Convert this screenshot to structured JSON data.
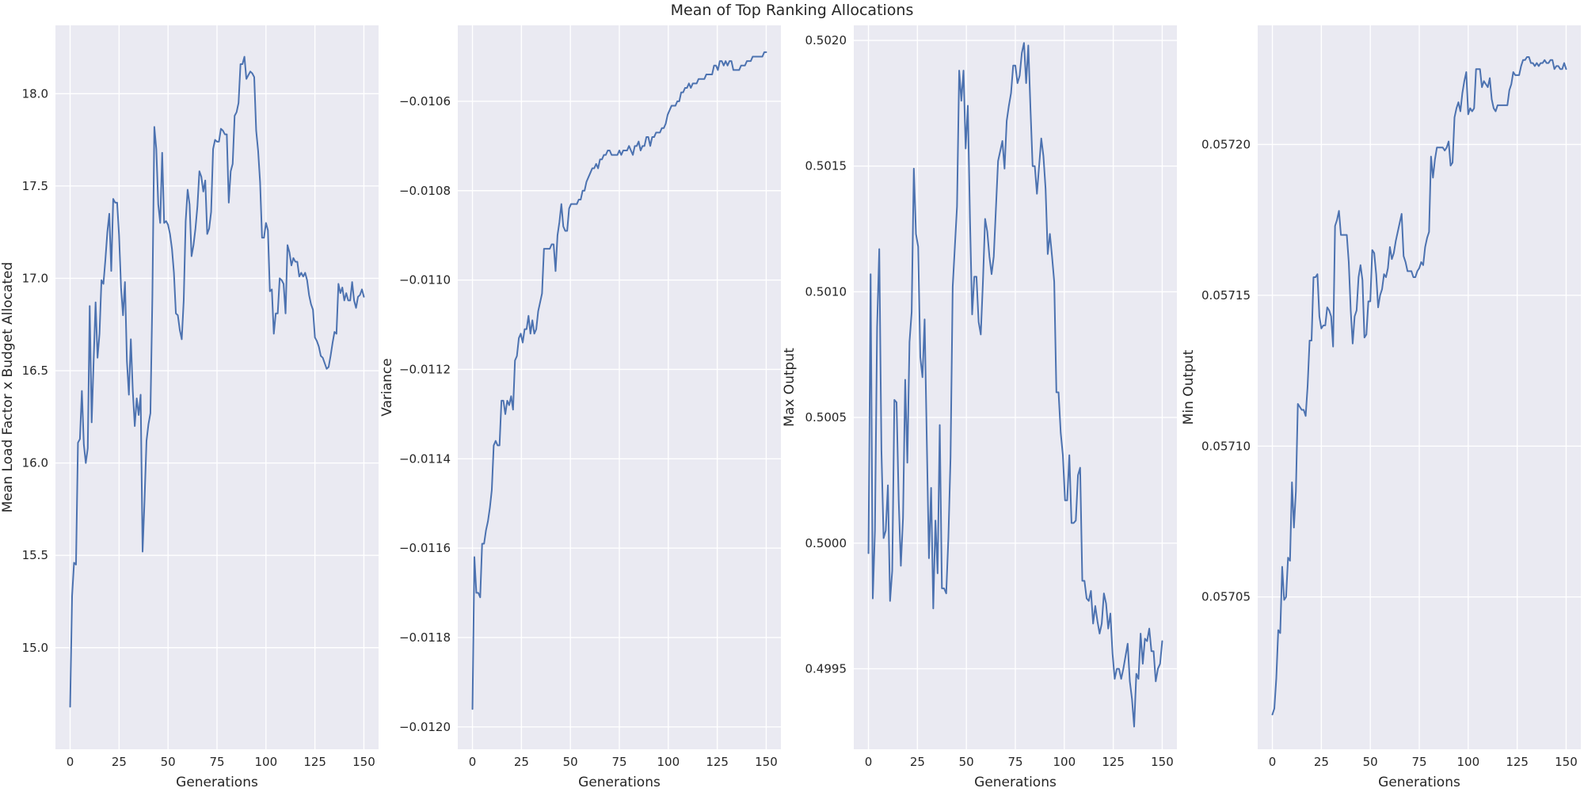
{
  "figure": {
    "title": "Mean of Top Ranking Allocations"
  },
  "style": {
    "panel_bg": "#EAEAF2",
    "grid": "#FFFFFF",
    "line": "#4C72B0",
    "text": "#262626"
  },
  "chart_data": [
    {
      "type": "line",
      "xlabel": "Generations",
      "ylabel": "Mean Load Factor x Budget Allocated",
      "xlim": [
        -7.5,
        157.5
      ],
      "ylim": [
        14.45,
        18.37
      ],
      "xticks": [
        0,
        25,
        50,
        75,
        100,
        125,
        150
      ],
      "yticks": [
        15.0,
        15.5,
        16.0,
        16.5,
        17.0,
        17.5,
        18.0
      ],
      "ytick_labels": [
        "15.0",
        "15.5",
        "16.0",
        "16.5",
        "17.0",
        "17.5",
        "18.0"
      ],
      "grid": true,
      "x_range": [
        0,
        150
      ],
      "series": [
        {
          "y": [
            14.68,
            15.28,
            15.46,
            15.45,
            16.11,
            16.13,
            16.39,
            16.1,
            16.0,
            16.08,
            16.85,
            16.22,
            16.55,
            16.87,
            16.57,
            16.7,
            16.99,
            16.97,
            17.1,
            17.25,
            17.35,
            17.04,
            17.43,
            17.41,
            17.41,
            17.23,
            16.95,
            16.8,
            16.98,
            16.55,
            16.37,
            16.67,
            16.39,
            16.2,
            16.35,
            16.26,
            16.37,
            15.52,
            15.8,
            16.12,
            16.21,
            16.27,
            16.9,
            17.82,
            17.7,
            17.4,
            17.3,
            17.68,
            17.3,
            17.31,
            17.29,
            17.24,
            17.16,
            17.03,
            16.81,
            16.8,
            16.72,
            16.67,
            16.88,
            17.31,
            17.48,
            17.4,
            17.12,
            17.18,
            17.27,
            17.39,
            17.58,
            17.55,
            17.47,
            17.53,
            17.24,
            17.27,
            17.36,
            17.7,
            17.75,
            17.74,
            17.74,
            17.81,
            17.8,
            17.78,
            17.78,
            17.41,
            17.58,
            17.62,
            17.88,
            17.9,
            17.95,
            18.16,
            18.16,
            18.2,
            18.08,
            18.1,
            18.12,
            18.11,
            18.09,
            17.8,
            17.69,
            17.52,
            17.22,
            17.22,
            17.3,
            17.26,
            16.93,
            16.94,
            16.7,
            16.81,
            16.81,
            17.0,
            16.99,
            16.97,
            16.81,
            17.18,
            17.14,
            17.07,
            17.11,
            17.09,
            17.09,
            17.01,
            17.03,
            17.01,
            17.03,
            16.99,
            16.91,
            16.86,
            16.83,
            16.68,
            16.66,
            16.63,
            16.58,
            16.57,
            16.54,
            16.51,
            16.52,
            16.58,
            16.65,
            16.71,
            16.7,
            16.97,
            16.92,
            16.95,
            16.88,
            16.92,
            16.88,
            16.88,
            16.98,
            16.88,
            16.84,
            16.9,
            16.91,
            16.94,
            16.9
          ]
        }
      ]
    },
    {
      "type": "line",
      "xlabel": "Generations",
      "ylabel": "Variance",
      "xlim": [
        -7.5,
        157.5
      ],
      "ylim": [
        -0.01205,
        -0.01043
      ],
      "xticks": [
        0,
        25,
        50,
        75,
        100,
        125,
        150
      ],
      "yticks": [
        -0.012,
        -0.0118,
        -0.0116,
        -0.0114,
        -0.0112,
        -0.011,
        -0.0108,
        -0.0106
      ],
      "ytick_labels": [
        "−0.0120",
        "−0.0118",
        "−0.0116",
        "−0.0114",
        "−0.0112",
        "−0.0110",
        "−0.0108",
        "−0.0106"
      ],
      "grid": true,
      "x_range": [
        0,
        150
      ],
      "series": [
        {
          "y": [
            -0.01196,
            -0.01162,
            -0.0117,
            -0.0117,
            -0.01171,
            -0.01159,
            -0.01159,
            -0.01156,
            -0.01154,
            -0.01151,
            -0.01147,
            -0.01137,
            -0.01136,
            -0.01137,
            -0.01137,
            -0.01127,
            -0.01127,
            -0.0113,
            -0.01127,
            -0.01128,
            -0.01126,
            -0.01129,
            -0.01118,
            -0.01117,
            -0.01113,
            -0.01112,
            -0.01114,
            -0.01111,
            -0.01111,
            -0.01108,
            -0.01112,
            -0.01109,
            -0.01112,
            -0.01111,
            -0.01107,
            -0.01105,
            -0.01103,
            -0.01093,
            -0.01093,
            -0.01093,
            -0.01093,
            -0.01092,
            -0.01092,
            -0.01098,
            -0.0109,
            -0.01087,
            -0.01083,
            -0.01088,
            -0.01089,
            -0.01089,
            -0.01084,
            -0.01083,
            -0.01083,
            -0.01083,
            -0.01083,
            -0.01082,
            -0.01082,
            -0.0108,
            -0.0108,
            -0.01078,
            -0.01077,
            -0.01076,
            -0.01075,
            -0.01075,
            -0.01074,
            -0.01075,
            -0.01073,
            -0.01073,
            -0.01072,
            -0.01072,
            -0.01071,
            -0.01071,
            -0.01072,
            -0.01072,
            -0.01072,
            -0.01072,
            -0.01071,
            -0.01072,
            -0.01071,
            -0.01071,
            -0.01071,
            -0.0107,
            -0.01071,
            -0.01072,
            -0.0107,
            -0.0107,
            -0.01069,
            -0.01071,
            -0.0107,
            -0.0107,
            -0.01068,
            -0.01068,
            -0.0107,
            -0.01068,
            -0.01068,
            -0.01067,
            -0.01067,
            -0.01067,
            -0.01066,
            -0.01066,
            -0.01065,
            -0.01063,
            -0.01062,
            -0.01061,
            -0.01061,
            -0.01061,
            -0.0106,
            -0.0106,
            -0.01058,
            -0.01058,
            -0.01057,
            -0.01057,
            -0.01056,
            -0.01057,
            -0.01056,
            -0.01056,
            -0.01056,
            -0.01055,
            -0.01055,
            -0.01055,
            -0.01055,
            -0.01054,
            -0.01054,
            -0.01054,
            -0.01054,
            -0.01052,
            -0.01052,
            -0.01053,
            -0.01051,
            -0.01051,
            -0.01052,
            -0.01051,
            -0.01052,
            -0.01051,
            -0.01051,
            -0.01053,
            -0.01053,
            -0.01053,
            -0.01053,
            -0.01052,
            -0.01052,
            -0.01052,
            -0.01051,
            -0.01051,
            -0.01051,
            -0.0105,
            -0.0105,
            -0.0105,
            -0.0105,
            -0.0105,
            -0.0105,
            -0.01049,
            -0.01049
          ]
        }
      ]
    },
    {
      "type": "line",
      "xlabel": "Generations",
      "ylabel": "Max Output",
      "xlim": [
        -7.5,
        157.5
      ],
      "ylim": [
        0.49918,
        0.50206
      ],
      "xticks": [
        0,
        25,
        50,
        75,
        100,
        125,
        150
      ],
      "yticks": [
        0.4995,
        0.5,
        0.5005,
        0.501,
        0.5015,
        0.502
      ],
      "ytick_labels": [
        "0.4995",
        "0.5000",
        "0.5005",
        "0.5010",
        "0.5015",
        "0.5020"
      ],
      "grid": true,
      "x_range": [
        0,
        150
      ],
      "series": [
        {
          "y": [
            0.49996,
            0.50107,
            0.49978,
            0.50005,
            0.50086,
            0.50117,
            0.50037,
            0.50002,
            0.50005,
            0.50023,
            0.49977,
            0.49989,
            0.50057,
            0.50056,
            0.50017,
            0.49991,
            0.5001,
            0.50065,
            0.50032,
            0.5008,
            0.50092,
            0.50149,
            0.50123,
            0.50118,
            0.50074,
            0.50066,
            0.50089,
            0.50041,
            0.49994,
            0.50022,
            0.49974,
            0.50009,
            0.49988,
            0.50047,
            0.49982,
            0.49982,
            0.4998,
            0.50002,
            0.50034,
            0.50102,
            0.50118,
            0.50134,
            0.50188,
            0.50176,
            0.50188,
            0.50157,
            0.50174,
            0.50129,
            0.50091,
            0.50106,
            0.50106,
            0.50088,
            0.50083,
            0.50104,
            0.50129,
            0.50124,
            0.50114,
            0.50107,
            0.50114,
            0.50133,
            0.50152,
            0.50156,
            0.5016,
            0.50149,
            0.50168,
            0.50174,
            0.50179,
            0.5019,
            0.5019,
            0.50183,
            0.50186,
            0.50195,
            0.50199,
            0.50183,
            0.50198,
            0.50173,
            0.5015,
            0.5015,
            0.50139,
            0.5015,
            0.50161,
            0.50154,
            0.50141,
            0.50115,
            0.50123,
            0.50114,
            0.50104,
            0.5006,
            0.5006,
            0.50044,
            0.50035,
            0.50017,
            0.50017,
            0.50035,
            0.50008,
            0.50008,
            0.50009,
            0.50027,
            0.5003,
            0.49985,
            0.49985,
            0.49978,
            0.49977,
            0.49981,
            0.49968,
            0.49975,
            0.49969,
            0.49964,
            0.49968,
            0.4998,
            0.49976,
            0.49966,
            0.49972,
            0.49956,
            0.49946,
            0.4995,
            0.4995,
            0.49946,
            0.4995,
            0.49955,
            0.4996,
            0.49945,
            0.49938,
            0.49927,
            0.49948,
            0.49946,
            0.49964,
            0.49952,
            0.49962,
            0.49961,
            0.49966,
            0.49957,
            0.49957,
            0.49945,
            0.4995,
            0.49952,
            0.49961
          ]
        }
      ]
    },
    {
      "type": "line",
      "xlabel": "Generations",
      "ylabel": "Min Output",
      "xlim": [
        -7.5,
        157.5
      ],
      "ylim": [
        0.0569995,
        0.0572395
      ],
      "xticks": [
        0,
        25,
        50,
        75,
        100,
        125,
        150
      ],
      "yticks": [
        0.05705,
        0.0571,
        0.05715,
        0.0572
      ],
      "ytick_labels": [
        "0.05705",
        "0.05710",
        "0.05715",
        "0.05720"
      ],
      "grid": true,
      "x_range": [
        0,
        150
      ],
      "series": [
        {
          "y": [
            0.057011,
            0.057013,
            0.057023,
            0.057039,
            0.057038,
            0.05706,
            0.057049,
            0.05705,
            0.057063,
            0.057062,
            0.057088,
            0.057073,
            0.057085,
            0.057114,
            0.057113,
            0.057112,
            0.057112,
            0.05711,
            0.05712,
            0.057135,
            0.057135,
            0.057156,
            0.057156,
            0.057157,
            0.057143,
            0.057139,
            0.05714,
            0.05714,
            0.057146,
            0.057145,
            0.057143,
            0.057133,
            0.057173,
            0.057175,
            0.057178,
            0.05717,
            0.05717,
            0.05717,
            0.05717,
            0.057161,
            0.057145,
            0.057134,
            0.057143,
            0.057145,
            0.057156,
            0.05716,
            0.057155,
            0.057136,
            0.057137,
            0.057148,
            0.057148,
            0.057165,
            0.057164,
            0.057157,
            0.057146,
            0.05715,
            0.057152,
            0.057157,
            0.057156,
            0.057159,
            0.057166,
            0.057162,
            0.057164,
            0.057168,
            0.057171,
            0.057174,
            0.057177,
            0.057163,
            0.057161,
            0.057158,
            0.057158,
            0.057158,
            0.057156,
            0.057156,
            0.057158,
            0.057159,
            0.057161,
            0.05716,
            0.057166,
            0.057169,
            0.057171,
            0.057196,
            0.057189,
            0.057195,
            0.057199,
            0.057199,
            0.057199,
            0.057199,
            0.057198,
            0.057199,
            0.057201,
            0.057193,
            0.057194,
            0.057209,
            0.057212,
            0.057214,
            0.057211,
            0.057217,
            0.057221,
            0.057224,
            0.05721,
            0.057212,
            0.057211,
            0.057212,
            0.057225,
            0.057225,
            0.057225,
            0.057219,
            0.057221,
            0.05722,
            0.057219,
            0.057222,
            0.057215,
            0.057212,
            0.057211,
            0.057213,
            0.057213,
            0.057213,
            0.057213,
            0.057213,
            0.057213,
            0.057218,
            0.05722,
            0.057224,
            0.057223,
            0.057223,
            0.057223,
            0.057226,
            0.057228,
            0.057228,
            0.057229,
            0.057229,
            0.057227,
            0.057227,
            0.057226,
            0.057227,
            0.057226,
            0.057227,
            0.057227,
            0.057228,
            0.057227,
            0.057227,
            0.057228,
            0.057228,
            0.057225,
            0.057226,
            0.057226,
            0.057225,
            0.057225,
            0.057227,
            0.057225
          ]
        }
      ]
    }
  ]
}
